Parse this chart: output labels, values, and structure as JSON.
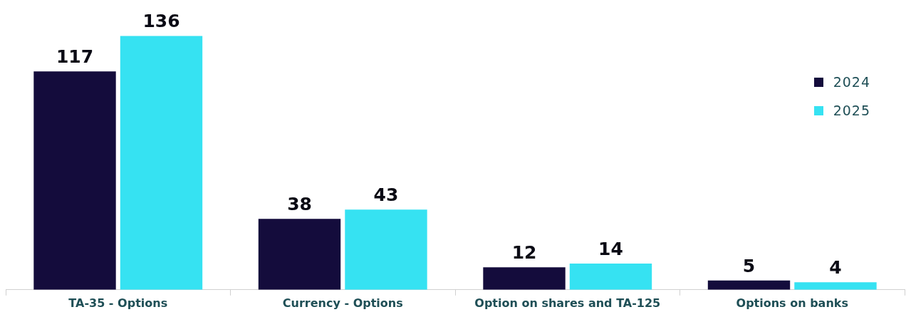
{
  "chart_data": {
    "type": "bar",
    "categories": [
      "TA-35 - Options",
      "Currency - Options",
      "Option on shares and TA-125",
      "Options on banks"
    ],
    "series": [
      {
        "name": "2024",
        "color": "#140c3c",
        "values": [
          117,
          38,
          12,
          5
        ]
      },
      {
        "name": "2025",
        "color": "#36e2f2",
        "values": [
          136,
          43,
          14,
          4
        ]
      }
    ],
    "data_labels": true,
    "legend": "top right",
    "grid": false,
    "tick_labels": "x"
  }
}
